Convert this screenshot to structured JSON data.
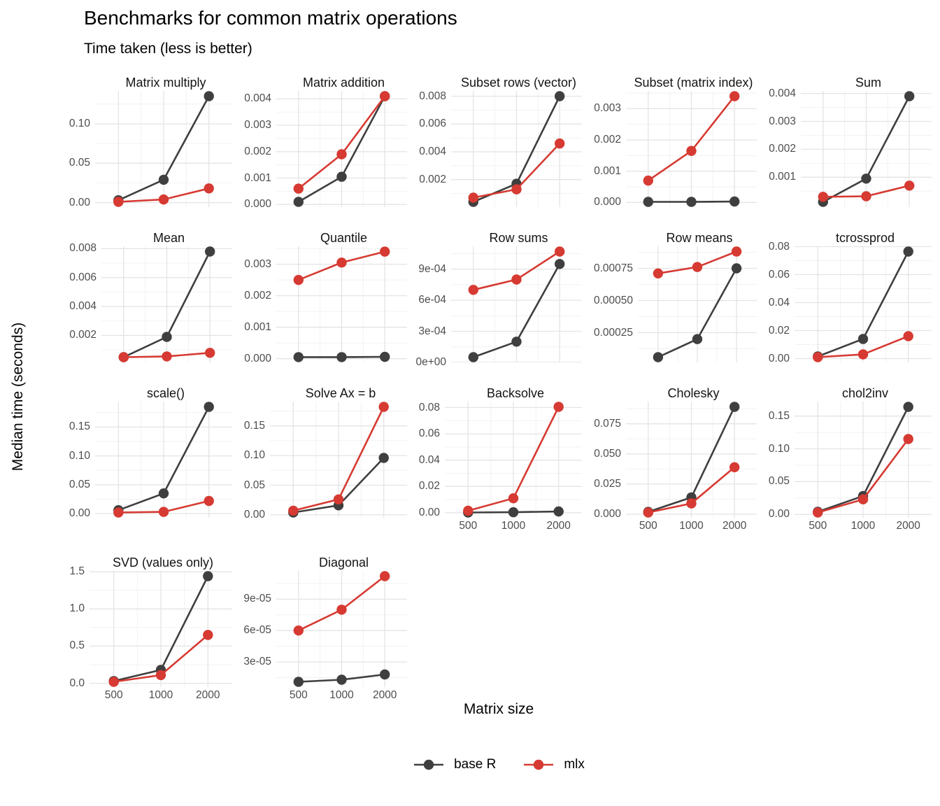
{
  "title": "Benchmarks for common matrix operations",
  "subtitle": "Time taken (less is better)",
  "axis": {
    "x_label": "Matrix size",
    "y_label": "Median time (seconds)"
  },
  "x_tick_labels": [
    "500",
    "1000",
    "2000"
  ],
  "legend": [
    {
      "label": "base R",
      "color": "#3f3f3f"
    },
    {
      "label": "mlx",
      "color": "#d63a32"
    }
  ],
  "colors": {
    "base_r": "#3f3f3f",
    "mlx": "#d63a32",
    "grid_major": "#e4e4e4",
    "grid_minor": "#f2f2f2",
    "tick_label": "#4d4d4d"
  },
  "chart_data": [
    {
      "type": "line",
      "title": "Matrix multiply",
      "x": [
        500,
        1000,
        2000
      ],
      "series": [
        {
          "name": "base R",
          "values": [
            0.003,
            0.029,
            0.135
          ]
        },
        {
          "name": "mlx",
          "values": [
            0.001,
            0.004,
            0.018
          ]
        }
      ],
      "yticks": [
        0,
        0.05,
        0.1
      ],
      "ytick_labels": [
        "0.00",
        "0.05",
        "0.10"
      ],
      "ylim": [
        -0.0057,
        0.1417
      ],
      "show_x_ticks": false
    },
    {
      "type": "line",
      "title": "Matrix addition",
      "x": [
        500,
        1000,
        2000
      ],
      "series": [
        {
          "name": "base R",
          "values": [
            0.0001,
            0.00105,
            0.0041
          ]
        },
        {
          "name": "mlx",
          "values": [
            0.0006,
            0.0019,
            0.0041
          ]
        }
      ],
      "yticks": [
        0,
        0.001,
        0.002,
        0.003,
        0.004
      ],
      "ytick_labels": [
        "0.000",
        "0.001",
        "0.002",
        "0.003",
        "0.004"
      ],
      "ylim": [
        -0.0001,
        0.0043
      ],
      "show_x_ticks": false
    },
    {
      "type": "line",
      "title": "Subset rows (vector)",
      "x": [
        500,
        1000,
        2000
      ],
      "series": [
        {
          "name": "base R",
          "values": [
            0.0004,
            0.0017,
            0.008
          ]
        },
        {
          "name": "mlx",
          "values": [
            0.0007,
            0.0013,
            0.0046
          ]
        }
      ],
      "yticks": [
        0.002,
        0.004,
        0.006,
        0.008
      ],
      "ytick_labels": [
        "0.002",
        "0.004",
        "0.006",
        "0.008"
      ],
      "ylim": [
        2e-05,
        0.00838
      ],
      "show_x_ticks": false
    },
    {
      "type": "line",
      "title": "Subset (matrix index)",
      "x": [
        500,
        1000,
        2000
      ],
      "series": [
        {
          "name": "base R",
          "values": [
            2e-05,
            2e-05,
            3e-05
          ]
        },
        {
          "name": "mlx",
          "values": [
            0.0007,
            0.00165,
            0.0034
          ]
        }
      ],
      "yticks": [
        0,
        0.001,
        0.002,
        0.003
      ],
      "ytick_labels": [
        "0.000",
        "0.001",
        "0.002",
        "0.003"
      ],
      "ylim": [
        -0.000149,
        0.003569
      ],
      "show_x_ticks": false
    },
    {
      "type": "line",
      "title": "Sum",
      "x": [
        500,
        1000,
        2000
      ],
      "series": [
        {
          "name": "base R",
          "values": [
            0.00012,
            0.00095,
            0.0039
          ]
        },
        {
          "name": "mlx",
          "values": [
            0.0003,
            0.00032,
            0.0007
          ]
        }
      ],
      "yticks": [
        0.001,
        0.002,
        0.003,
        0.004
      ],
      "ytick_labels": [
        "0.001",
        "0.002",
        "0.003",
        "0.004"
      ],
      "ylim": [
        -6.9e-05,
        0.004089
      ],
      "show_x_ticks": false
    },
    {
      "type": "line",
      "title": "Mean",
      "x": [
        500,
        1000,
        2000
      ],
      "series": [
        {
          "name": "base R",
          "values": [
            0.0005,
            0.0019,
            0.0078
          ]
        },
        {
          "name": "mlx",
          "values": [
            0.0005,
            0.00055,
            0.0008
          ]
        }
      ],
      "yticks": [
        0.002,
        0.004,
        0.006,
        0.008
      ],
      "ytick_labels": [
        "0.002",
        "0.004",
        "0.006",
        "0.008"
      ],
      "ylim": [
        0.000135,
        0.008165
      ],
      "show_x_ticks": false
    },
    {
      "type": "line",
      "title": "Quantile",
      "x": [
        500,
        1000,
        2000
      ],
      "series": [
        {
          "name": "base R",
          "values": [
            5e-05,
            5e-05,
            6e-05
          ]
        },
        {
          "name": "mlx",
          "values": [
            0.0025,
            0.00305,
            0.0034
          ]
        }
      ],
      "yticks": [
        0,
        0.001,
        0.002,
        0.003
      ],
      "ytick_labels": [
        "0.000",
        "0.001",
        "0.002",
        "0.003"
      ],
      "ylim": [
        -0.000118,
        0.003568
      ],
      "show_x_ticks": false
    },
    {
      "type": "line",
      "title": "Row sums",
      "x": [
        500,
        1000,
        2000
      ],
      "series": [
        {
          "name": "base R",
          "values": [
            5e-05,
            0.0002,
            0.00095
          ]
        },
        {
          "name": "mlx",
          "values": [
            0.0007,
            0.0008,
            0.00107
          ]
        }
      ],
      "yticks": [
        0,
        0.0003,
        0.0006,
        0.0009
      ],
      "ytick_labels": [
        "0e+00",
        "3e-04",
        "6e-04",
        "9e-04"
      ],
      "ylim": [
        -1e-06,
        0.001121
      ],
      "show_x_ticks": false
    },
    {
      "type": "line",
      "title": "Row means",
      "x": [
        500,
        1000,
        2000
      ],
      "series": [
        {
          "name": "base R",
          "values": [
            6e-05,
            0.0002,
            0.00075
          ]
        },
        {
          "name": "mlx",
          "values": [
            0.00071,
            0.00076,
            0.00088
          ]
        }
      ],
      "yticks": [
        0.00025,
        0.0005,
        0.00075
      ],
      "ytick_labels": [
        "0.00025",
        "0.00050",
        "0.00075"
      ],
      "ylim": [
        1.9e-05,
        0.000921
      ],
      "show_x_ticks": false
    },
    {
      "type": "line",
      "title": "tcrossprod",
      "x": [
        500,
        1000,
        2000
      ],
      "series": [
        {
          "name": "base R",
          "values": [
            0.0015,
            0.014,
            0.0765
          ]
        },
        {
          "name": "mlx",
          "values": [
            0.001,
            0.003,
            0.016
          ]
        }
      ],
      "yticks": [
        0,
        0.02,
        0.04,
        0.06,
        0.08
      ],
      "ytick_labels": [
        "0.00",
        "0.02",
        "0.04",
        "0.06",
        "0.08"
      ],
      "ylim": [
        -0.002775,
        0.080275
      ],
      "show_x_ticks": false
    },
    {
      "type": "line",
      "title": "scale()",
      "x": [
        500,
        1000,
        2000
      ],
      "series": [
        {
          "name": "base R",
          "values": [
            0.006,
            0.035,
            0.185
          ]
        },
        {
          "name": "mlx",
          "values": [
            0.002,
            0.003,
            0.022
          ]
        }
      ],
      "yticks": [
        0,
        0.05,
        0.1,
        0.15
      ],
      "ytick_labels": [
        "0.00",
        "0.05",
        "0.10",
        "0.15"
      ],
      "ylim": [
        -0.00715,
        0.19415
      ],
      "show_x_ticks": false
    },
    {
      "type": "line",
      "title": "Solve Ax = b",
      "x": [
        500,
        1000,
        2000
      ],
      "series": [
        {
          "name": "base R",
          "values": [
            0.004,
            0.016,
            0.096
          ]
        },
        {
          "name": "mlx",
          "values": [
            0.007,
            0.026,
            0.182
          ]
        }
      ],
      "yticks": [
        0,
        0.05,
        0.1,
        0.15
      ],
      "ytick_labels": [
        "0.00",
        "0.05",
        "0.10",
        "0.15"
      ],
      "ylim": [
        -0.0049,
        0.1909
      ],
      "show_x_ticks": false
    },
    {
      "type": "line",
      "title": "Backsolve",
      "x": [
        500,
        1000,
        2000
      ],
      "series": [
        {
          "name": "base R",
          "values": [
            0.0002,
            0.0004,
            0.001
          ]
        },
        {
          "name": "mlx",
          "values": [
            0.0015,
            0.011,
            0.0805
          ]
        }
      ],
      "yticks": [
        0,
        0.02,
        0.04,
        0.06,
        0.08
      ],
      "ytick_labels": [
        "0.00",
        "0.02",
        "0.04",
        "0.06",
        "0.08"
      ],
      "ylim": [
        -0.003815,
        0.084515
      ],
      "show_x_ticks": true
    },
    {
      "type": "line",
      "title": "Cholesky",
      "x": [
        500,
        1000,
        2000
      ],
      "series": [
        {
          "name": "base R",
          "values": [
            0.002,
            0.014,
            0.089
          ]
        },
        {
          "name": "mlx",
          "values": [
            0.0015,
            0.009,
            0.039
          ]
        }
      ],
      "yticks": [
        0,
        0.025,
        0.05,
        0.075
      ],
      "ytick_labels": [
        "0.000",
        "0.025",
        "0.050",
        "0.075"
      ],
      "ylim": [
        -0.002875,
        0.093375
      ],
      "show_x_ticks": true
    },
    {
      "type": "line",
      "title": "chol2inv",
      "x": [
        500,
        1000,
        2000
      ],
      "series": [
        {
          "name": "base R",
          "values": [
            0.004,
            0.028,
            0.164
          ]
        },
        {
          "name": "mlx",
          "values": [
            0.003,
            0.023,
            0.115
          ]
        }
      ],
      "yticks": [
        0,
        0.05,
        0.1,
        0.15
      ],
      "ytick_labels": [
        "0.00",
        "0.05",
        "0.10",
        "0.15"
      ],
      "ylim": [
        -0.00505,
        0.17205
      ],
      "show_x_ticks": true
    },
    {
      "type": "line",
      "title": "SVD (values only)",
      "x": [
        500,
        1000,
        2000
      ],
      "series": [
        {
          "name": "base R",
          "values": [
            0.03,
            0.18,
            1.44
          ]
        },
        {
          "name": "mlx",
          "values": [
            0.02,
            0.11,
            0.65
          ]
        }
      ],
      "yticks": [
        0,
        0.5,
        1.0,
        1.5
      ],
      "ytick_labels": [
        "0.0",
        "0.5",
        "1.0",
        "1.5"
      ],
      "ylim": [
        -0.051,
        1.511
      ],
      "show_x_ticks": true
    },
    {
      "type": "line",
      "title": "Diagonal",
      "x": [
        500,
        1000,
        2000
      ],
      "series": [
        {
          "name": "base R",
          "values": [
            1.1e-05,
            1.3e-05,
            1.8e-05
          ]
        },
        {
          "name": "mlx",
          "values": [
            6e-05,
            8e-05,
            0.000112
          ]
        }
      ],
      "yticks": [
        3e-05,
        6e-05,
        9e-05
      ],
      "ytick_labels": [
        "3e-05",
        "6e-05",
        "9e-05"
      ],
      "ylim": [
        5.95e-06,
        0.00011705
      ],
      "show_x_ticks": true
    }
  ]
}
